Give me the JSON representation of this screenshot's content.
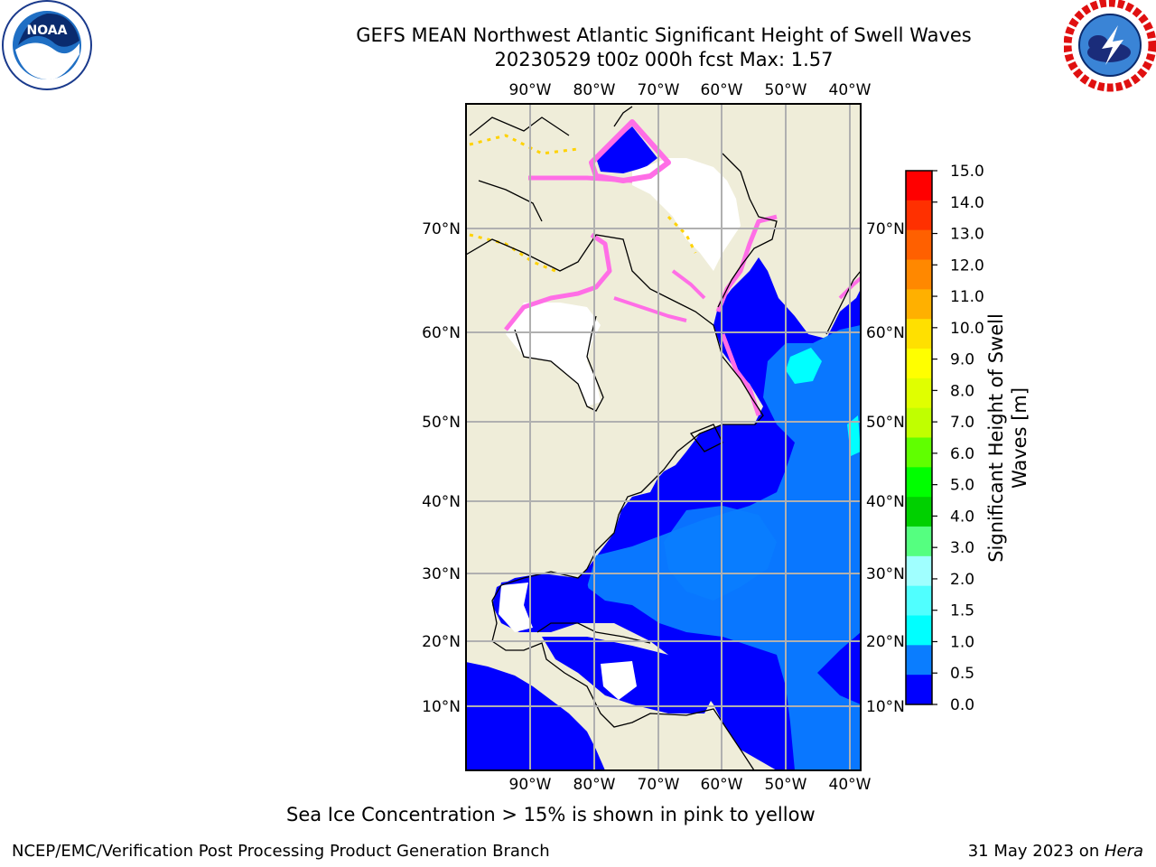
{
  "header": {
    "title_line1": "GEFS MEAN Northwest Atlantic Significant Height of Swell Waves",
    "title_line2": "20230529 t00z 000h fcst   Max: 1.57"
  },
  "logos": {
    "noaa_text": "NOAA",
    "nws_text": "NATIONAL WEATHER SERVICE"
  },
  "map": {
    "lon_labels": [
      "90°W",
      "80°W",
      "70°W",
      "60°W",
      "50°W",
      "40°W"
    ],
    "lat_labels": [
      "70°N",
      "60°N",
      "50°N",
      "40°N",
      "30°N",
      "20°N",
      "10°N"
    ],
    "colors": {
      "land": "#efedd9",
      "grid": "#b0b0b0",
      "ocean_low": "#0000ff",
      "ocean_mid": "#0a7dff",
      "ocean_hi": "#00ffff",
      "ice_pink": "#ff6ee6",
      "ice_yellow": "#ffd200"
    }
  },
  "colorbar": {
    "title": "Significant Height of Swell Waves [m]",
    "title_line1": "Significant Height of Swell",
    "title_line2": "Waves [m]",
    "ticks": [
      "15.0",
      "14.0",
      "13.0",
      "12.0",
      "11.0",
      "10.0",
      "9.0",
      "8.0",
      "7.0",
      "6.0",
      "5.0",
      "4.0",
      "3.0",
      "2.0",
      "1.5",
      "1.0",
      "0.5",
      "0.0"
    ],
    "colors": [
      "#ff0000",
      "#ff3000",
      "#ff6000",
      "#ff8800",
      "#ffb000",
      "#ffe000",
      "#ffff00",
      "#e0ff00",
      "#c0ff00",
      "#60ff00",
      "#00ff00",
      "#00d000",
      "#55ff80",
      "#a0ffff",
      "#50ffff",
      "#00ffff",
      "#0a7dff",
      "#0000ff"
    ]
  },
  "footer": {
    "subtitle": "Sea Ice Concentration > 15% is shown in pink to yellow",
    "left": "NCEP/EMC/Verification Post Processing Product Generation Branch",
    "right_date": "31 May 2023 on ",
    "right_host": "Hera"
  }
}
